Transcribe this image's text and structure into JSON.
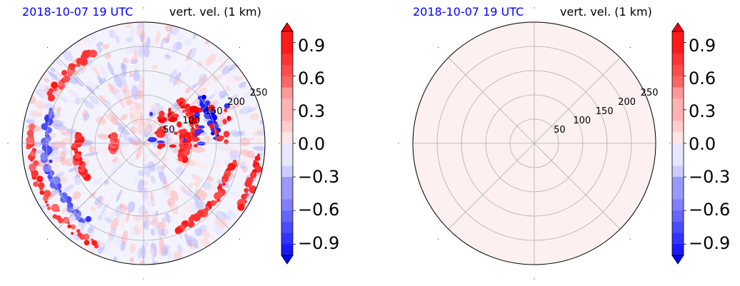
{
  "colors": {
    "title_time": "#0000ff",
    "title_field": "#000000",
    "grid": "#b0b0b0",
    "cmap_neg": "#0000ff",
    "cmap_zero": "#ffffff",
    "cmap_pos": "#ff0000"
  },
  "chart_data": [
    {
      "type": "heatmap",
      "projection": "polar",
      "title_left": "2018-10-07 19 UTC",
      "title_right": "vert. vel. (1 km)",
      "radial_ticks": [
        "50",
        "100",
        "150",
        "200",
        "250"
      ],
      "rlim": [
        0,
        250
      ],
      "grid": true,
      "colorbar": {
        "ticks": [
          "0.9",
          "0.6",
          "0.3",
          "0.0",
          "−0.3",
          "−0.6",
          "−0.9"
        ],
        "vlim": [
          -1.0,
          1.0
        ],
        "extend": "both"
      },
      "field": "structured updraft/downdraft bands"
    },
    {
      "type": "heatmap",
      "projection": "polar",
      "title_left": "2018-10-07 19 UTC",
      "title_right": "vert. vel. (1 km)",
      "radial_ticks": [
        "50",
        "100",
        "150",
        "200",
        "250"
      ],
      "rlim": [
        0,
        250
      ],
      "grid": true,
      "colorbar": {
        "ticks": [
          "0.9",
          "0.6",
          "0.3",
          "0.0",
          "−0.3",
          "−0.6",
          "−0.9"
        ],
        "vlim": [
          -1.0,
          1.0
        ],
        "extend": "both"
      },
      "field": "near-zero uniform",
      "uniform_value": 0.05
    }
  ]
}
